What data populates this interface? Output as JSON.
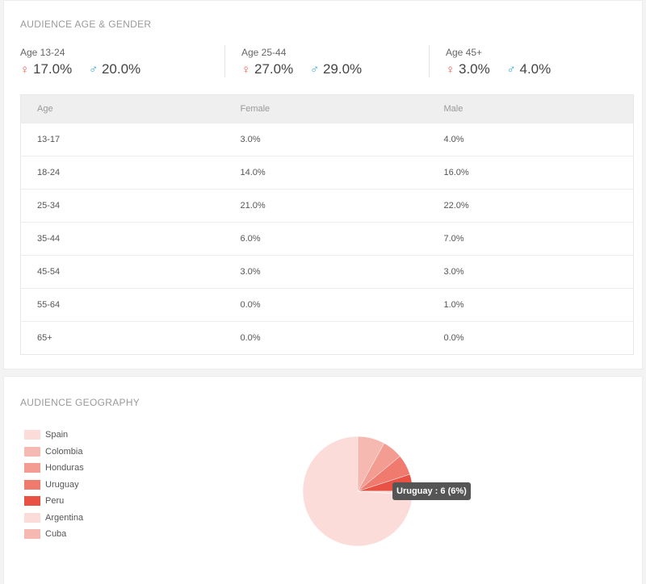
{
  "age_section": {
    "title": "AUDIENCE AGE & GENDER",
    "summary": [
      {
        "label": "Age 13-24",
        "female": "17.0%",
        "male": "20.0%"
      },
      {
        "label": "Age 25-44",
        "female": "27.0%",
        "male": "29.0%"
      },
      {
        "label": "Age 45+",
        "female": "3.0%",
        "male": "4.0%"
      }
    ],
    "female_symbol": "♀",
    "male_symbol": "♂",
    "table": {
      "headers": [
        "Age",
        "Female",
        "Male"
      ],
      "rows": [
        [
          "13-17",
          "3.0%",
          "4.0%"
        ],
        [
          "18-24",
          "14.0%",
          "16.0%"
        ],
        [
          "25-34",
          "21.0%",
          "22.0%"
        ],
        [
          "35-44",
          "6.0%",
          "7.0%"
        ],
        [
          "45-54",
          "3.0%",
          "3.0%"
        ],
        [
          "55-64",
          "0.0%",
          "1.0%"
        ],
        [
          "65+",
          "0.0%",
          "0.0%"
        ]
      ]
    }
  },
  "geo_section": {
    "title": "AUDIENCE GEOGRAPHY",
    "tooltip": "Uruguay : 6 (6%)",
    "legend": [
      {
        "label": "Spain",
        "color": "#fbdcd8"
      },
      {
        "label": "Colombia",
        "color": "#f6b9b1"
      },
      {
        "label": "Honduras",
        "color": "#f39c91"
      },
      {
        "label": "Uruguay",
        "color": "#ef7a6d"
      },
      {
        "label": "Peru",
        "color": "#ea5145"
      },
      {
        "label": "Argentina",
        "color": "#fbdcd8"
      },
      {
        "label": "Cuba",
        "color": "#f6b9b1"
      }
    ]
  },
  "chart_data": {
    "type": "pie",
    "categories": [
      "Spain",
      "Colombia",
      "Honduras",
      "Uruguay",
      "Peru",
      "Argentina",
      "Cuba"
    ],
    "values": [
      74,
      8,
      6,
      6,
      5,
      1,
      0
    ],
    "colors": [
      "#fbdcd8",
      "#f6b9b1",
      "#f39c91",
      "#ef7a6d",
      "#ea5145",
      "#fbdcd8",
      "#f6b9b1"
    ],
    "legend_position": "left"
  }
}
